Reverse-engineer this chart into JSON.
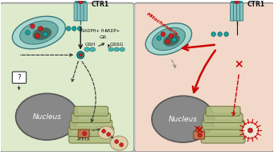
{
  "fig_width": 3.41,
  "fig_height": 1.89,
  "dpi": 100,
  "bg_color": "#ffffff",
  "left_cell_bg": "#ddeacc",
  "right_cell_bg": "#f2d8c8",
  "cell_border": "#999999",
  "nucleus_color": "#888888",
  "nucleus_border": "#555555",
  "mito_outer": "#a8d8d0",
  "mito_inner": "#70b0a8",
  "mito_border": "#3a7878",
  "mito_dark": "#4a6858",
  "golgi_color": "#b0bc80",
  "golgi_border": "#606830",
  "ctr1_color": "#80c0c0",
  "ctr1_border": "#306868",
  "arrow_normal": "#1a1a1a",
  "arrow_red": "#cc0000",
  "arrow_dashed": "#333333",
  "copper_red": "#cc2222",
  "copper_teal": "#18a0a0",
  "text_color": "#111111",
  "label_CTR1": "CTR1",
  "label_NADPH": "NADPH+ H+",
  "label_NADP": "NADP+",
  "label_GR": "GR",
  "label_GSH": "GSH",
  "label_GSSG": "GSSG",
  "label_ATP7A": "ATP7A",
  "label_nucleus_left": "Nucleus",
  "label_nucleus_right": "Nucleus",
  "label_mito_right": "Mitochondria",
  "label_question": "?",
  "vesicle_color": "#e8e0d0",
  "vesicle_border": "#cc0000",
  "pump_color": "#c07850",
  "pump_border": "#804020"
}
